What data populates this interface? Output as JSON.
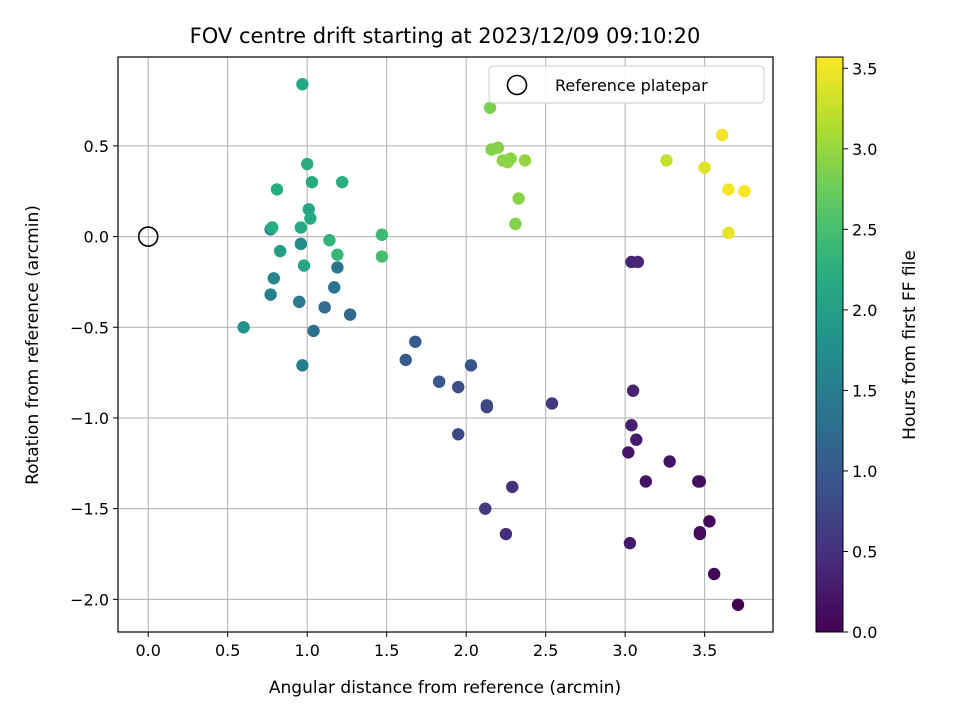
{
  "chart_data": {
    "type": "scatter",
    "title": "FOV centre drift starting at 2023/12/09 09:10:20",
    "xlabel": "Angular distance from reference (arcmin)",
    "ylabel": "Rotation from reference (arcmin)",
    "xlim": [
      -0.19,
      3.93
    ],
    "ylim": [
      -2.18,
      0.99
    ],
    "xticks": [
      0.0,
      0.5,
      1.0,
      1.5,
      2.0,
      2.5,
      3.0,
      3.5
    ],
    "xtick_labels": [
      "0.0",
      "0.5",
      "1.0",
      "1.5",
      "2.0",
      "2.5",
      "3.0",
      "3.5"
    ],
    "yticks": [
      -2.0,
      -1.5,
      -1.0,
      -0.5,
      0.0,
      0.5
    ],
    "ytick_labels": [
      "−2.0",
      "−1.5",
      "−1.0",
      "−0.5",
      "0.0",
      "0.5"
    ],
    "grid": true,
    "legend": {
      "placement": "upper-right",
      "entries": [
        "Reference platepar"
      ]
    },
    "reference_point": {
      "x": 0.0,
      "y": 0.0
    },
    "colorbar": {
      "label": "Hours from first FF file",
      "range": [
        0.0,
        3.57
      ],
      "ticks": [
        0.0,
        0.5,
        1.0,
        1.5,
        2.0,
        2.5,
        3.0,
        3.5
      ],
      "tick_labels": [
        "0.0",
        "0.5",
        "1.0",
        "1.5",
        "2.0",
        "2.5",
        "3.0",
        "3.5"
      ],
      "colormap": "viridis"
    },
    "points": [
      {
        "x": 3.71,
        "y": -2.03,
        "c": 0.0
      },
      {
        "x": 3.56,
        "y": -1.86,
        "c": 0.03
      },
      {
        "x": 3.53,
        "y": -1.57,
        "c": 0.05
      },
      {
        "x": 3.47,
        "y": -1.64,
        "c": 0.08
      },
      {
        "x": 3.47,
        "y": -1.63,
        "c": 0.1
      },
      {
        "x": 3.47,
        "y": -1.35,
        "c": 0.12
      },
      {
        "x": 3.46,
        "y": -1.35,
        "c": 0.14
      },
      {
        "x": 3.13,
        "y": -1.35,
        "c": 0.18
      },
      {
        "x": 3.28,
        "y": -1.24,
        "c": 0.2
      },
      {
        "x": 3.02,
        "y": -1.19,
        "c": 0.22
      },
      {
        "x": 3.03,
        "y": -1.69,
        "c": 0.25
      },
      {
        "x": 3.07,
        "y": -1.12,
        "c": 0.28
      },
      {
        "x": 3.04,
        "y": -1.04,
        "c": 0.3
      },
      {
        "x": 3.05,
        "y": -0.85,
        "c": 0.33
      },
      {
        "x": 3.04,
        "y": -0.14,
        "c": 0.36
      },
      {
        "x": 3.08,
        "y": -0.14,
        "c": 0.38
      },
      {
        "x": 2.25,
        "y": -1.64,
        "c": 0.45
      },
      {
        "x": 2.29,
        "y": -1.38,
        "c": 0.5
      },
      {
        "x": 2.54,
        "y": -0.92,
        "c": 0.55
      },
      {
        "x": 2.12,
        "y": -1.5,
        "c": 0.62
      },
      {
        "x": 2.13,
        "y": -0.94,
        "c": 0.72
      },
      {
        "x": 2.13,
        "y": -0.93,
        "c": 0.76
      },
      {
        "x": 1.95,
        "y": -1.09,
        "c": 0.8
      },
      {
        "x": 1.95,
        "y": -0.83,
        "c": 0.85
      },
      {
        "x": 2.03,
        "y": -0.71,
        "c": 0.9
      },
      {
        "x": 1.83,
        "y": -0.8,
        "c": 0.95
      },
      {
        "x": 1.68,
        "y": -0.58,
        "c": 1.0
      },
      {
        "x": 1.62,
        "y": -0.68,
        "c": 1.05
      },
      {
        "x": 1.27,
        "y": -0.43,
        "c": 1.2
      },
      {
        "x": 1.11,
        "y": -0.39,
        "c": 1.25
      },
      {
        "x": 1.04,
        "y": -0.52,
        "c": 1.3
      },
      {
        "x": 1.17,
        "y": -0.28,
        "c": 1.35
      },
      {
        "x": 1.19,
        "y": -0.17,
        "c": 1.38
      },
      {
        "x": 0.95,
        "y": -0.36,
        "c": 1.45
      },
      {
        "x": 0.97,
        "y": -0.71,
        "c": 1.5
      },
      {
        "x": 0.77,
        "y": -0.32,
        "c": 1.55
      },
      {
        "x": 0.79,
        "y": -0.23,
        "c": 1.6
      },
      {
        "x": 0.77,
        "y": 0.04,
        "c": 1.65
      },
      {
        "x": 0.96,
        "y": -0.04,
        "c": 1.7
      },
      {
        "x": 0.6,
        "y": -0.5,
        "c": 1.8
      },
      {
        "x": 0.83,
        "y": -0.08,
        "c": 2.0
      },
      {
        "x": 0.98,
        "y": -0.16,
        "c": 2.1
      },
      {
        "x": 0.78,
        "y": 0.05,
        "c": 2.2
      },
      {
        "x": 0.96,
        "y": 0.05,
        "c": 2.15
      },
      {
        "x": 1.01,
        "y": 0.15,
        "c": 2.1
      },
      {
        "x": 1.02,
        "y": 0.1,
        "c": 2.15
      },
      {
        "x": 0.81,
        "y": 0.26,
        "c": 2.2
      },
      {
        "x": 1.03,
        "y": 0.3,
        "c": 2.18
      },
      {
        "x": 1.0,
        "y": 0.4,
        "c": 2.22
      },
      {
        "x": 0.97,
        "y": 0.84,
        "c": 2.12
      },
      {
        "x": 1.22,
        "y": 0.3,
        "c": 2.25
      },
      {
        "x": 1.14,
        "y": -0.02,
        "c": 2.3
      },
      {
        "x": 1.19,
        "y": -0.1,
        "c": 2.35
      },
      {
        "x": 1.47,
        "y": 0.01,
        "c": 2.42
      },
      {
        "x": 1.47,
        "y": -0.11,
        "c": 2.48
      },
      {
        "x": 2.15,
        "y": 0.71,
        "c": 2.85
      },
      {
        "x": 2.16,
        "y": 0.48,
        "c": 2.88
      },
      {
        "x": 2.2,
        "y": 0.49,
        "c": 2.9
      },
      {
        "x": 2.23,
        "y": 0.42,
        "c": 2.92
      },
      {
        "x": 2.26,
        "y": 0.41,
        "c": 2.95
      },
      {
        "x": 2.28,
        "y": 0.43,
        "c": 2.93
      },
      {
        "x": 2.37,
        "y": 0.42,
        "c": 2.97
      },
      {
        "x": 2.33,
        "y": 0.21,
        "c": 2.9
      },
      {
        "x": 2.31,
        "y": 0.07,
        "c": 2.88
      },
      {
        "x": 3.26,
        "y": 0.42,
        "c": 3.25
      },
      {
        "x": 3.5,
        "y": 0.38,
        "c": 3.4
      },
      {
        "x": 3.61,
        "y": 0.56,
        "c": 3.5
      },
      {
        "x": 3.65,
        "y": 0.26,
        "c": 3.52
      },
      {
        "x": 3.75,
        "y": 0.25,
        "c": 3.55
      },
      {
        "x": 3.65,
        "y": 0.02,
        "c": 3.45
      }
    ]
  }
}
